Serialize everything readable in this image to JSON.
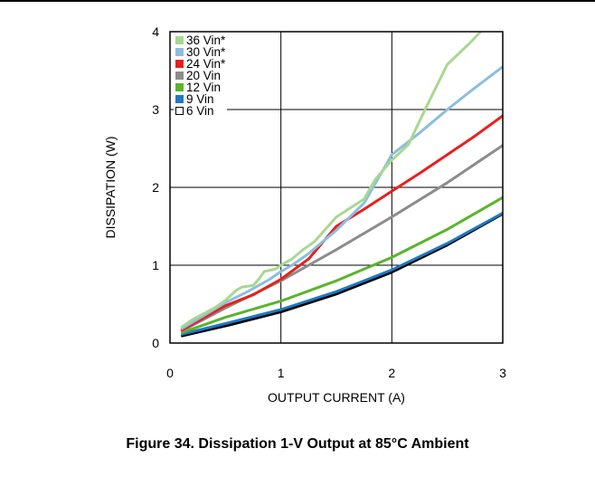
{
  "figure": {
    "caption": "Figure 34. Dissipation 1-V Output at 85°C Ambient"
  },
  "chart_data": {
    "type": "line",
    "xlabel": "OUTPUT CURRENT (A)",
    "ylabel": "DISSIPATION (W)",
    "xlim": [
      0,
      3
    ],
    "ylim": [
      0,
      4
    ],
    "xticks": [
      "0",
      "1",
      "2",
      "3"
    ],
    "yticks": [
      "0",
      "1",
      "2",
      "3",
      "4"
    ],
    "grid": true,
    "legend_position": "top-left",
    "series": [
      {
        "name": "36 Vin*",
        "color": "#a8d890",
        "points": [
          [
            0.1,
            0.2
          ],
          [
            0.2,
            0.3
          ],
          [
            0.4,
            0.45
          ],
          [
            0.5,
            0.55
          ],
          [
            0.6,
            0.68
          ],
          [
            0.65,
            0.72
          ],
          [
            0.75,
            0.74
          ],
          [
            0.8,
            0.82
          ],
          [
            0.85,
            0.92
          ],
          [
            0.95,
            0.95
          ],
          [
            1.0,
            1.0
          ],
          [
            1.1,
            1.08
          ],
          [
            1.2,
            1.2
          ],
          [
            1.3,
            1.3
          ],
          [
            1.5,
            1.62
          ],
          [
            1.75,
            1.85
          ],
          [
            1.85,
            2.1
          ],
          [
            2.0,
            2.35
          ],
          [
            2.15,
            2.55
          ],
          [
            2.3,
            3.0
          ],
          [
            2.5,
            3.58
          ],
          [
            2.7,
            3.85
          ],
          [
            2.8,
            4.0
          ]
        ]
      },
      {
        "name": "30 Vin*",
        "color": "#8cbde0",
        "points": [
          [
            0.1,
            0.18
          ],
          [
            0.3,
            0.35
          ],
          [
            0.5,
            0.52
          ],
          [
            0.7,
            0.66
          ],
          [
            0.9,
            0.82
          ],
          [
            1.0,
            0.92
          ],
          [
            1.1,
            1.0
          ],
          [
            1.25,
            1.15
          ],
          [
            1.5,
            1.45
          ],
          [
            1.75,
            1.8
          ],
          [
            2.0,
            2.42
          ],
          [
            2.25,
            2.7
          ],
          [
            2.5,
            3.0
          ],
          [
            2.75,
            3.28
          ],
          [
            3.0,
            3.55
          ]
        ]
      },
      {
        "name": "24 Vin*",
        "color": "#e8201c",
        "points": [
          [
            0.1,
            0.16
          ],
          [
            0.3,
            0.32
          ],
          [
            0.5,
            0.48
          ],
          [
            0.75,
            0.62
          ],
          [
            1.0,
            0.82
          ],
          [
            1.25,
            1.08
          ],
          [
            1.5,
            1.5
          ],
          [
            1.75,
            1.72
          ],
          [
            2.0,
            1.95
          ],
          [
            2.25,
            2.18
          ],
          [
            2.5,
            2.42
          ],
          [
            2.75,
            2.66
          ],
          [
            3.0,
            2.92
          ]
        ]
      },
      {
        "name": "20 Vin",
        "color": "#8c8c8c",
        "points": [
          [
            0.1,
            0.15
          ],
          [
            0.5,
            0.45
          ],
          [
            1.0,
            0.8
          ],
          [
            1.5,
            1.2
          ],
          [
            2.0,
            1.62
          ],
          [
            2.5,
            2.06
          ],
          [
            3.0,
            2.54
          ]
        ]
      },
      {
        "name": "12 Vin",
        "color": "#5ab42c",
        "points": [
          [
            0.1,
            0.13
          ],
          [
            0.5,
            0.33
          ],
          [
            1.0,
            0.54
          ],
          [
            1.5,
            0.8
          ],
          [
            2.0,
            1.1
          ],
          [
            2.5,
            1.46
          ],
          [
            3.0,
            1.87
          ]
        ]
      },
      {
        "name": "9 Vin",
        "color": "#1e78c2",
        "points": [
          [
            0.1,
            0.11
          ],
          [
            0.5,
            0.25
          ],
          [
            1.0,
            0.43
          ],
          [
            1.5,
            0.66
          ],
          [
            2.0,
            0.94
          ],
          [
            2.5,
            1.28
          ],
          [
            3.0,
            1.67
          ]
        ]
      },
      {
        "name": "6 Vin",
        "color": "#000000",
        "points": [
          [
            0.1,
            0.09
          ],
          [
            0.5,
            0.22
          ],
          [
            1.0,
            0.4
          ],
          [
            1.5,
            0.63
          ],
          [
            2.0,
            0.91
          ],
          [
            2.5,
            1.26
          ],
          [
            3.0,
            1.66
          ]
        ]
      }
    ]
  }
}
